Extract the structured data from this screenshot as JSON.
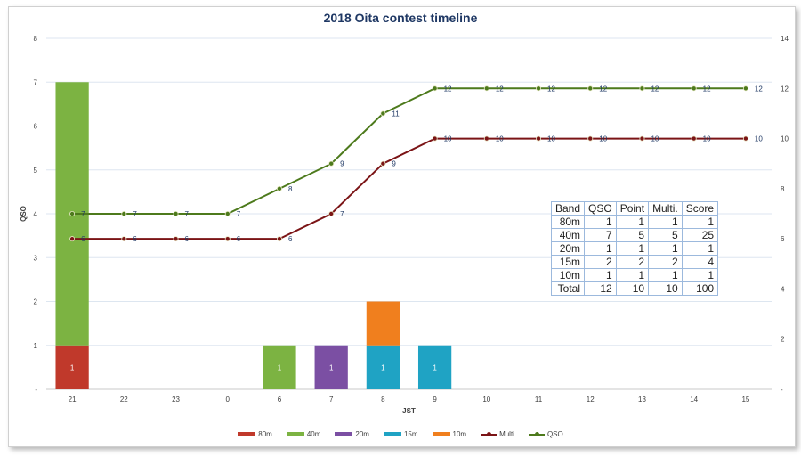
{
  "chart_data": {
    "type": "bar+line",
    "title": "2018 Oita contest timeline",
    "xlabel": "JST",
    "ylabel": "QSO",
    "categories": [
      "21",
      "22",
      "23",
      "0",
      "6",
      "7",
      "8",
      "9",
      "10",
      "11",
      "12",
      "13",
      "14",
      "15"
    ],
    "y_left": {
      "range": [
        0,
        8
      ],
      "ticks": [
        "-",
        "1",
        "2",
        "3",
        "4",
        "5",
        "6",
        "7",
        "8"
      ]
    },
    "y_right": {
      "range": [
        0,
        14
      ],
      "ticks": [
        "-",
        "2",
        "4",
        "6",
        "8",
        "10",
        "12",
        "14"
      ]
    },
    "bar_series": [
      {
        "name": "80m",
        "color": "#c0392b",
        "values": [
          1,
          0,
          0,
          0,
          0,
          0,
          0,
          0,
          0,
          0,
          0,
          0,
          0,
          0
        ]
      },
      {
        "name": "40m",
        "color": "#7cb342",
        "values": [
          6,
          0,
          0,
          0,
          1,
          0,
          0,
          0,
          0,
          0,
          0,
          0,
          0,
          0
        ]
      },
      {
        "name": "20m",
        "color": "#7b4fa3",
        "values": [
          0,
          0,
          0,
          0,
          0,
          1,
          0,
          0,
          0,
          0,
          0,
          0,
          0,
          0
        ]
      },
      {
        "name": "15m",
        "color": "#1fa3c4",
        "values": [
          0,
          0,
          0,
          0,
          0,
          0,
          1,
          1,
          0,
          0,
          0,
          0,
          0,
          0
        ]
      },
      {
        "name": "10m",
        "color": "#f07f1e",
        "values": [
          0,
          0,
          0,
          0,
          0,
          0,
          1,
          0,
          0,
          0,
          0,
          0,
          0,
          0
        ]
      }
    ],
    "bar_labels": [
      {
        "index": 0,
        "text": "1"
      },
      {
        "index": 4,
        "text": "1"
      },
      {
        "index": 5,
        "text": "1"
      },
      {
        "index": 6,
        "text": "1"
      },
      {
        "index": 7,
        "text": "1"
      }
    ],
    "line_series": [
      {
        "name": "Multi",
        "color": "#7b1416",
        "values": [
          6,
          6,
          6,
          6,
          6,
          7,
          9,
          10,
          10,
          10,
          10,
          10,
          10,
          10
        ]
      },
      {
        "name": "QSO",
        "color": "#4d7a1c",
        "values": [
          7,
          7,
          7,
          7,
          8,
          9,
          11,
          12,
          12,
          12,
          12,
          12,
          12,
          12
        ]
      }
    ],
    "legend": [
      "80m",
      "40m",
      "20m",
      "15m",
      "10m",
      "Multi",
      "QSO"
    ],
    "legend_position": "bottom",
    "grid": true
  },
  "table": {
    "headers": [
      "Band",
      "QSO",
      "Point",
      "Multi.",
      "Score"
    ],
    "rows": [
      [
        "80m",
        "1",
        "1",
        "1",
        "1"
      ],
      [
        "40m",
        "7",
        "5",
        "5",
        "25"
      ],
      [
        "20m",
        "1",
        "1",
        "1",
        "1"
      ],
      [
        "15m",
        "2",
        "2",
        "2",
        "4"
      ],
      [
        "10m",
        "1",
        "1",
        "1",
        "1"
      ],
      [
        "Total",
        "12",
        "10",
        "10",
        "100"
      ]
    ]
  }
}
